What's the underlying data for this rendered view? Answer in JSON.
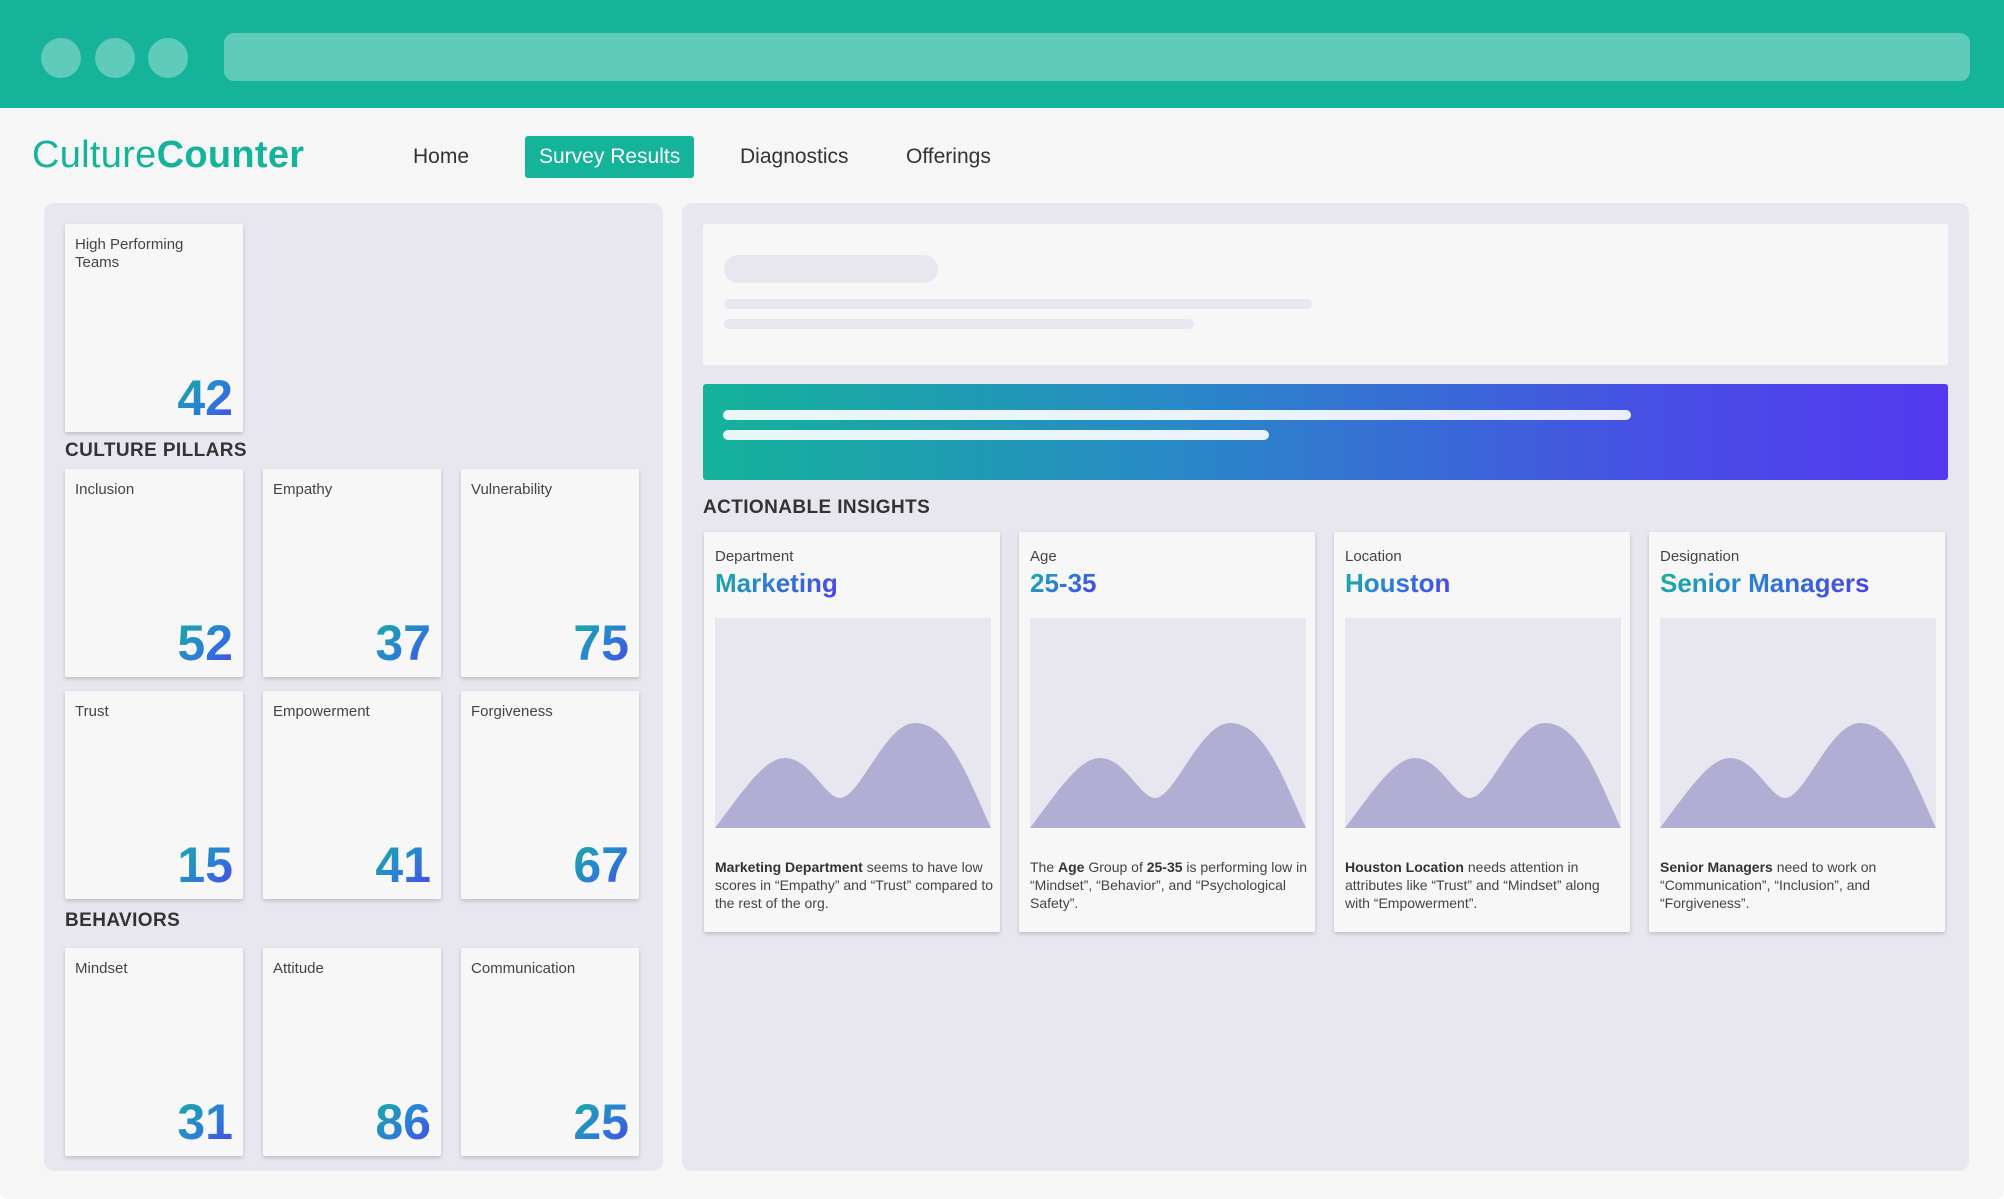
{
  "app": {
    "logo_light": "Culture",
    "logo_bold": "Counter"
  },
  "nav": {
    "items": [
      {
        "label": "Home",
        "active": false
      },
      {
        "label": "Survey Results",
        "active": true
      },
      {
        "label": "Diagnostics",
        "active": false
      },
      {
        "label": "Offerings",
        "active": false
      }
    ]
  },
  "colors": {
    "brand": "#14b39a",
    "panel": "#e8e7ef",
    "chart_fill": "#b0afd3"
  },
  "overview": {
    "label": "High Performing Teams",
    "value": "42"
  },
  "culture_pillars": {
    "title": "CULTURE PILLARS",
    "items": [
      {
        "label": "Inclusion",
        "value": "52"
      },
      {
        "label": "Empathy",
        "value": "37"
      },
      {
        "label": "Vulnerability",
        "value": "75"
      },
      {
        "label": "Trust",
        "value": "15"
      },
      {
        "label": "Empowerment",
        "value": "41"
      },
      {
        "label": "Forgiveness",
        "value": "67"
      }
    ]
  },
  "behaviors": {
    "title": "BEHAVIORS",
    "items": [
      {
        "label": "Mindset",
        "value": "31"
      },
      {
        "label": "Attitude",
        "value": "86"
      },
      {
        "label": "Communication",
        "value": "25"
      }
    ]
  },
  "insights": {
    "title": "ACTIONABLE INSIGHTS",
    "cards": [
      {
        "category": "Department",
        "value": "Marketing",
        "text_bold": "Marketing Department",
        "text_rest": " seems to have low scores in “Empathy” and “Trust” compared to the rest of the org."
      },
      {
        "category": "Age",
        "value": "25-35",
        "text_pre": "The ",
        "text_bold1": "Age",
        "text_mid": " Group of ",
        "text_bold2": "25-35",
        "text_rest": " is performing low in “Mindset”, “Behavior”, and “Psychological Safety”."
      },
      {
        "category": "Location",
        "value": "Houston",
        "text_bold": "Houston Location",
        "text_rest": " needs attention in attributes like “Trust” and “Mindset” along with “Empowerment”."
      },
      {
        "category": "Designation",
        "value": "Senior Managers",
        "text_bold": "Senior Managers",
        "text_rest": " need to work on “Communication”, “Inclusion”, and “Forgiveness”."
      }
    ]
  }
}
